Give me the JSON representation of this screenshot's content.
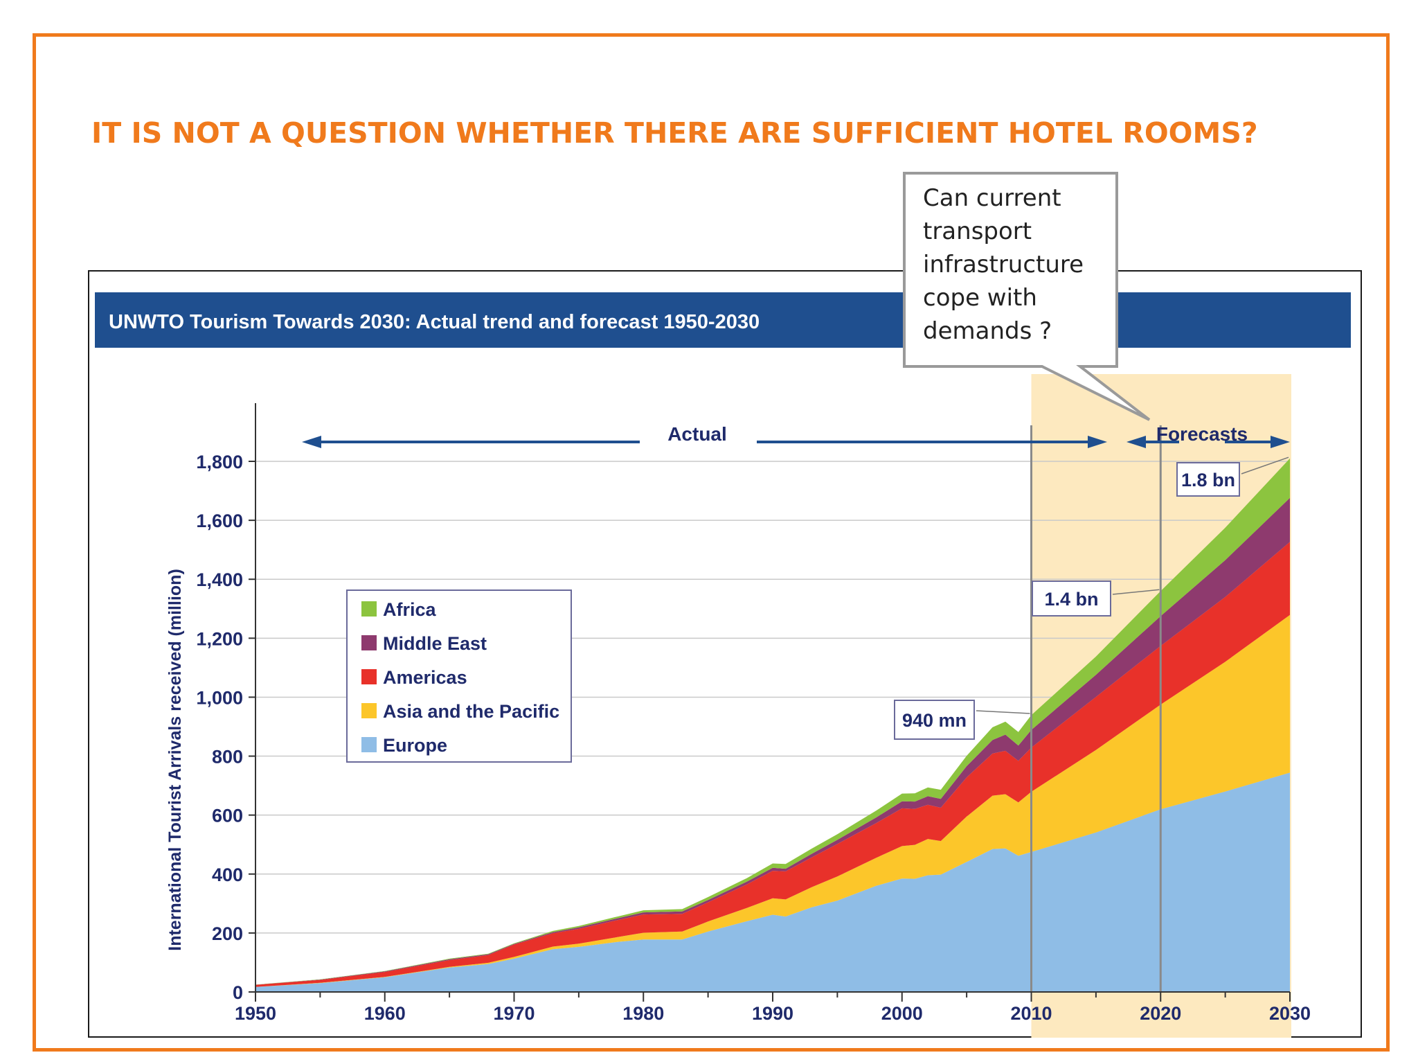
{
  "slide": {
    "headline": "IT IS NOT A QUESTION WHETHER THERE ARE SUFFICIENT HOTEL ROOMS?",
    "callout": "Can current\ntransport\ninfrastructure\ncope with\ndemands ?"
  },
  "colors": {
    "frame": "#f07a1c",
    "header_bar": "#1f4f8f",
    "forecast_shade": "#fde9bf",
    "europe": "#8fbde6",
    "asia": "#fcc62a",
    "americas": "#e8312a",
    "middle_east": "#8e3a6e",
    "africa": "#8cc43f",
    "axis_text": "#1f2a6b"
  },
  "chart_data": {
    "type": "area",
    "title": "UNWTO Tourism Towards 2030: Actual trend and forecast 1950-2030",
    "ylabel": "International Tourist Arrivals received (million)",
    "xlabel": "",
    "xlim": [
      1950,
      2030
    ],
    "ylim": [
      0,
      1800
    ],
    "x_ticks": [
      "1950",
      "1960",
      "1970",
      "1980",
      "1990",
      "2000",
      "2010",
      "2020",
      "2030"
    ],
    "y_ticks": [
      "0",
      "200",
      "400",
      "600",
      "800",
      "1,000",
      "1,200",
      "1,400",
      "1,600",
      "1,800"
    ],
    "stacked": true,
    "grid": true,
    "legend_position": "left-center",
    "x": [
      1950,
      1955,
      1960,
      1965,
      1968,
      1970,
      1973,
      1975,
      1978,
      1980,
      1983,
      1985,
      1988,
      1990,
      1991,
      1993,
      1995,
      1998,
      2000,
      2001,
      2002,
      2003,
      2005,
      2007,
      2008,
      2009,
      2010,
      2015,
      2020,
      2025,
      2030
    ],
    "series": [
      {
        "name": "Europe",
        "values": [
          17,
          30,
          50,
          83,
          95,
          113,
          145,
          153,
          170,
          178,
          178,
          205,
          240,
          262,
          256,
          287,
          310,
          360,
          385,
          384,
          396,
          398,
          441,
          485,
          487,
          462,
          475,
          541,
          620,
          680,
          744
        ]
      },
      {
        "name": "Asia and the Pacific",
        "values": [
          0.2,
          1,
          1,
          2,
          4,
          6,
          9,
          11,
          16,
          23,
          27,
          34,
          45,
          56,
          58,
          68,
          82,
          95,
          110,
          115,
          123,
          114,
          154,
          181,
          184,
          181,
          204,
          280,
          355,
          440,
          535
        ]
      },
      {
        "name": "Americas",
        "values": [
          7,
          10,
          17,
          23,
          26,
          42,
          45,
          50,
          58,
          62,
          60,
          65,
          80,
          93,
          95,
          101,
          110,
          118,
          128,
          122,
          116,
          113,
          133,
          143,
          147,
          141,
          150,
          180,
          199,
          220,
          248
        ]
      },
      {
        "name": "Middle East",
        "values": [
          0.2,
          1,
          2,
          3,
          3,
          2,
          4,
          5,
          6,
          7,
          8,
          8,
          9,
          10,
          9,
          12,
          14,
          19,
          24,
          25,
          29,
          30,
          38,
          46,
          55,
          52,
          60,
          75,
          101,
          125,
          149
        ]
      },
      {
        "name": "Africa",
        "values": [
          0.5,
          1,
          1,
          2,
          2,
          2,
          4,
          5,
          6,
          7,
          8,
          10,
          12,
          15,
          16,
          18,
          19,
          23,
          26,
          28,
          30,
          31,
          35,
          43,
          44,
          46,
          50,
          62,
          85,
          110,
          134
        ]
      }
    ],
    "legend_order": [
      "Africa",
      "Middle East",
      "Americas",
      "Asia and the Pacific",
      "Europe"
    ],
    "regions": [
      {
        "label": "Actual",
        "from": 1950,
        "to": 2010
      },
      {
        "label": "Forecasts",
        "from": 2010,
        "to": 2030
      }
    ],
    "annotations": [
      {
        "label": "940 mn",
        "x": 2010,
        "y": 940
      },
      {
        "label": "1.4 bn",
        "x": 2020,
        "y": 1360
      },
      {
        "label": "1.8 bn",
        "x": 2030,
        "y": 1809
      }
    ]
  }
}
